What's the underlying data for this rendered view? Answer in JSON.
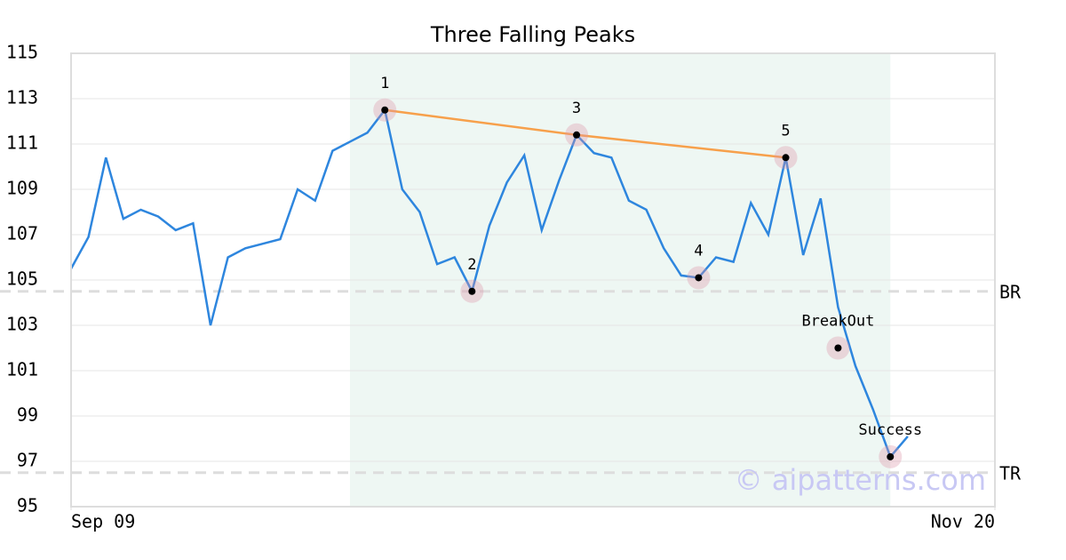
{
  "chart_data": {
    "type": "line",
    "title": "Three Falling Peaks",
    "x": [
      0,
      1,
      2,
      3,
      4,
      5,
      6,
      7,
      8,
      9,
      10,
      11,
      12,
      13,
      14,
      15,
      16,
      17,
      18,
      19,
      20,
      21,
      22,
      23,
      24,
      25,
      26,
      27,
      28,
      29,
      30,
      31,
      32,
      33,
      34,
      35,
      36,
      37,
      38,
      39,
      40,
      41,
      42,
      43,
      44,
      45,
      46,
      47,
      48
    ],
    "series": [
      {
        "color": "#2e86de",
        "values": [
          105.5,
          106.9,
          110.4,
          107.7,
          108.1,
          107.8,
          107.2,
          107.5,
          103.0,
          106.0,
          106.4,
          106.6,
          106.8,
          109.0,
          108.5,
          110.7,
          111.1,
          111.5,
          112.5,
          109.0,
          108.0,
          105.7,
          106.0,
          104.5,
          107.4,
          109.3,
          110.5,
          107.2,
          109.4,
          111.4,
          110.6,
          110.4,
          108.5,
          108.1,
          106.4,
          105.2,
          105.1,
          106.0,
          105.8,
          108.4,
          107.0,
          110.4,
          106.1,
          108.6,
          103.8,
          101.2,
          99.3,
          97.2,
          98.1
        ]
      }
    ],
    "trendline": {
      "color": "#f7a04b",
      "x": [
        18,
        29,
        41
      ],
      "y": [
        112.5,
        111.4,
        110.4
      ]
    },
    "annotations": [
      {
        "label": "1",
        "x": 18,
        "y": 112.5
      },
      {
        "label": "2",
        "x": 23,
        "y": 104.5
      },
      {
        "label": "3",
        "x": 29,
        "y": 111.4
      },
      {
        "label": "4",
        "x": 36,
        "y": 105.1
      },
      {
        "label": "5",
        "x": 41,
        "y": 110.4
      },
      {
        "label": "BreakOut",
        "x": 44,
        "y": 102.0
      },
      {
        "label": "Success",
        "x": 47,
        "y": 97.2
      }
    ],
    "hlines": [
      {
        "label": "BR",
        "value": 104.5
      },
      {
        "label": "TR",
        "value": 96.5
      }
    ],
    "shade": [
      16,
      47
    ],
    "watermark": "© aipatterns.com",
    "xlim": [
      0,
      53
    ],
    "xticks": [
      {
        "value": 0,
        "label": "Sep 09"
      },
      {
        "value": 53,
        "label": "Nov 20"
      }
    ],
    "ylim": [
      95,
      115
    ],
    "yticks": [
      95,
      97,
      99,
      101,
      103,
      105,
      107,
      109,
      111,
      113,
      115
    ],
    "grid": true
  }
}
